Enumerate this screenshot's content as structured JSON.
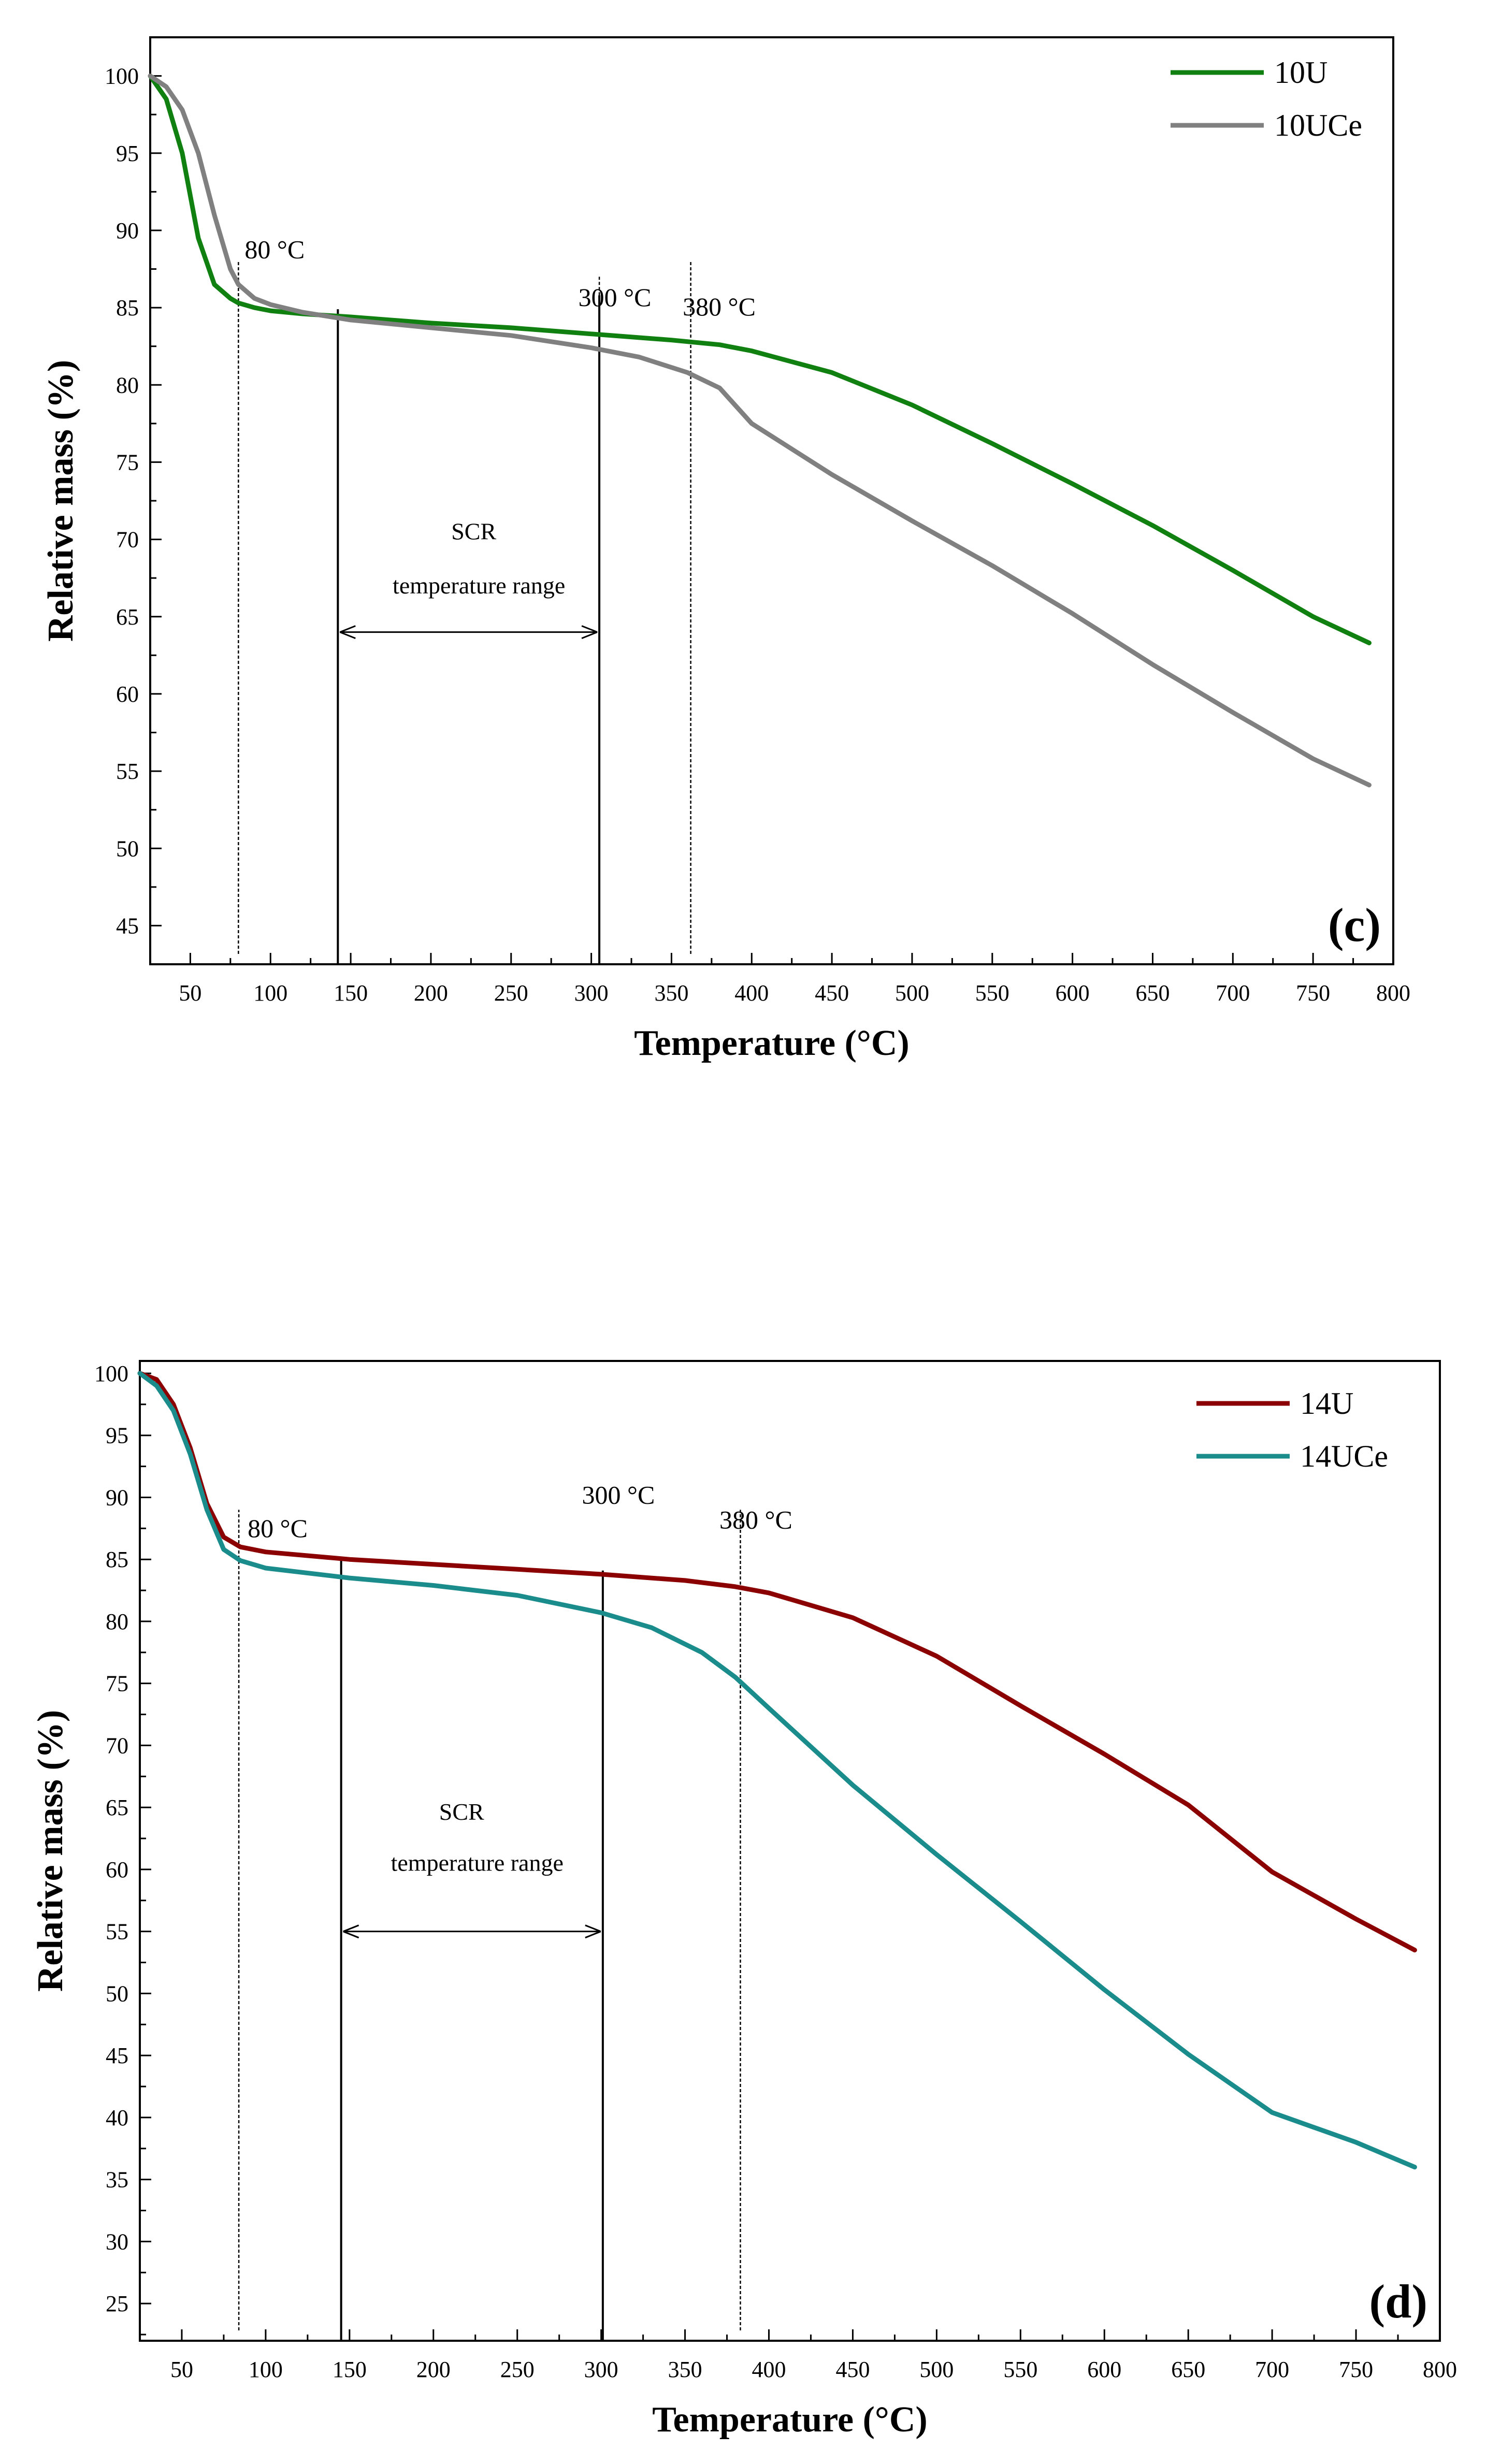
{
  "chart_data": [
    {
      "type": "line",
      "panel_label": "(c)",
      "xlabel": "Temperature (°C)",
      "ylabel": "Relative mass (%)",
      "xlim": [
        25,
        800
      ],
      "ylim": [
        42.5,
        102.5
      ],
      "xticks": [
        50,
        100,
        150,
        200,
        250,
        300,
        350,
        400,
        450,
        500,
        550,
        600,
        650,
        700,
        750,
        800
      ],
      "yticks": [
        45,
        50,
        55,
        60,
        65,
        70,
        75,
        80,
        85,
        90,
        95,
        100
      ],
      "legend_position": "top-right",
      "series": [
        {
          "name": "10U",
          "color": "#108010",
          "x": [
            25,
            35,
            45,
            55,
            65,
            75,
            80,
            90,
            100,
            120,
            150,
            200,
            250,
            300,
            350,
            380,
            400,
            450,
            500,
            550,
            600,
            650,
            700,
            750,
            785
          ],
          "y": [
            100,
            98.5,
            95,
            89.5,
            86.5,
            85.6,
            85.3,
            85.0,
            84.8,
            84.6,
            84.4,
            84.0,
            83.7,
            83.3,
            82.9,
            82.6,
            82.2,
            80.8,
            78.7,
            76.2,
            73.6,
            70.9,
            68.0,
            65.0,
            63.3
          ]
        },
        {
          "name": "10UCe",
          "color": "#808080",
          "x": [
            25,
            35,
            45,
            55,
            65,
            75,
            80,
            90,
            100,
            120,
            150,
            200,
            250,
            300,
            330,
            360,
            380,
            400,
            450,
            500,
            550,
            600,
            650,
            700,
            750,
            785
          ],
          "y": [
            100,
            99.3,
            97.8,
            95,
            91,
            87.5,
            86.5,
            85.6,
            85.2,
            84.7,
            84.2,
            83.7,
            83.2,
            82.4,
            81.8,
            80.8,
            79.8,
            77.5,
            74.2,
            71.2,
            68.3,
            65.2,
            61.9,
            58.8,
            55.8,
            54.1
          ]
        }
      ],
      "annotations": [
        {
          "text": "80 °C",
          "x": 80
        },
        {
          "text": "300 °C",
          "x": 305
        },
        {
          "text": "380 °C",
          "x": 362
        }
      ],
      "scr_window": {
        "title": "SCR",
        "subtitle": "temperature range",
        "x_start": 142,
        "x_end": 305
      }
    },
    {
      "type": "line",
      "panel_label": "(d)",
      "xlabel": "Temperature (°C)",
      "ylabel": "Relative mass (%)",
      "xlim": [
        25,
        800
      ],
      "ylim": [
        22,
        101
      ],
      "xticks": [
        50,
        100,
        150,
        200,
        250,
        300,
        350,
        400,
        450,
        500,
        550,
        600,
        650,
        700,
        750,
        800
      ],
      "yticks": [
        25,
        30,
        35,
        40,
        45,
        50,
        55,
        60,
        65,
        70,
        75,
        80,
        85,
        90,
        95,
        100
      ],
      "legend_position": "top-right",
      "series": [
        {
          "name": "14U",
          "color": "#8b0000",
          "x": [
            25,
            35,
            45,
            55,
            65,
            75,
            85,
            100,
            150,
            200,
            250,
            300,
            350,
            380,
            400,
            450,
            500,
            550,
            600,
            650,
            700,
            750,
            785
          ],
          "y": [
            100,
            99.5,
            97.5,
            94,
            89.5,
            86.8,
            86.0,
            85.6,
            85.0,
            84.6,
            84.2,
            83.8,
            83.3,
            82.8,
            82.3,
            80.3,
            77.2,
            73.2,
            69.3,
            65.2,
            59.8,
            56.0,
            53.5
          ]
        },
        {
          "name": "14UCe",
          "color": "#1a8c8c",
          "x": [
            25,
            35,
            45,
            55,
            65,
            75,
            85,
            100,
            150,
            200,
            250,
            300,
            330,
            360,
            380,
            400,
            450,
            500,
            550,
            600,
            650,
            700,
            750,
            785
          ],
          "y": [
            100,
            99.0,
            97.0,
            93.5,
            89.0,
            85.8,
            84.9,
            84.3,
            83.5,
            82.9,
            82.1,
            80.7,
            79.5,
            77.5,
            75.5,
            73.0,
            66.8,
            61.2,
            55.8,
            50.3,
            45.1,
            40.4,
            38.0,
            36.0
          ]
        }
      ],
      "annotations": [
        {
          "text": "80 °C",
          "x": 84
        },
        {
          "text": "300 °C",
          "x": 301
        },
        {
          "text": "380 °C",
          "x": 383
        }
      ],
      "scr_window": {
        "title": "SCR",
        "subtitle": "temperature range",
        "x_start": 145,
        "x_end": 301
      }
    }
  ]
}
